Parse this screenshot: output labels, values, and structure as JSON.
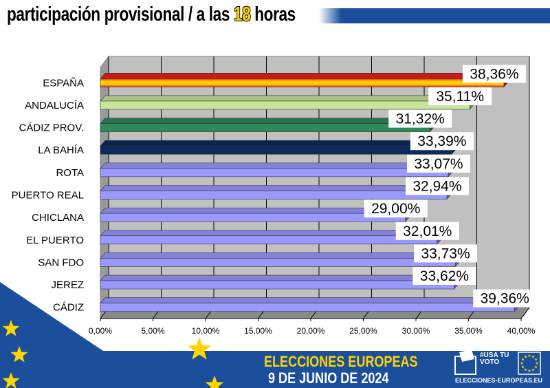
{
  "header": {
    "title_prefix": "participación provisional / a las ",
    "title_highlight": "18",
    "title_suffix": " horas"
  },
  "chart_data": {
    "type": "bar",
    "orientation": "horizontal",
    "categories": [
      "ESPAÑA",
      "ANDALUCÍA",
      "CÁDIZ PROV.",
      "LA BAHÍA",
      "ROTA",
      "PUERTO REAL",
      "CHICLANA",
      "EL PUERTO",
      "SAN FDO",
      "JEREZ",
      "CÁDIZ"
    ],
    "values": [
      38.36,
      35.11,
      31.32,
      33.39,
      33.07,
      32.94,
      29.0,
      32.01,
      33.73,
      33.62,
      39.36
    ],
    "data_labels": [
      "38,36%",
      "35,11%",
      "31,32%",
      "33,39%",
      "33,07%",
      "32,94%",
      "29,00%",
      "32,01%",
      "33,73%",
      "33,62%",
      "39,36%"
    ],
    "x_ticks": [
      "0,00%",
      "5,00%",
      "10,00%",
      "15,00%",
      "20,00%",
      "25,00%",
      "30,00%",
      "35,00%",
      "40,00%"
    ],
    "xlim": [
      0,
      40
    ],
    "grid": true,
    "bar_colors": [
      "#e8221c",
      "#c9e59a",
      "#2e8b5a",
      "#0d2a5c",
      "#9999ff",
      "#9999ff",
      "#9999ff",
      "#9999ff",
      "#9999ff",
      "#9999ff",
      "#9999ff"
    ],
    "title": "",
    "xlabel": "",
    "ylabel": ""
  },
  "footer": {
    "line1": "ELECCIONES EUROPEAS",
    "line2": "9 DE JUNIO DE 2024",
    "logo_text": "#USA TU VOTO",
    "logo_url": "ELECCIONES-EUROPEAS.EU"
  }
}
